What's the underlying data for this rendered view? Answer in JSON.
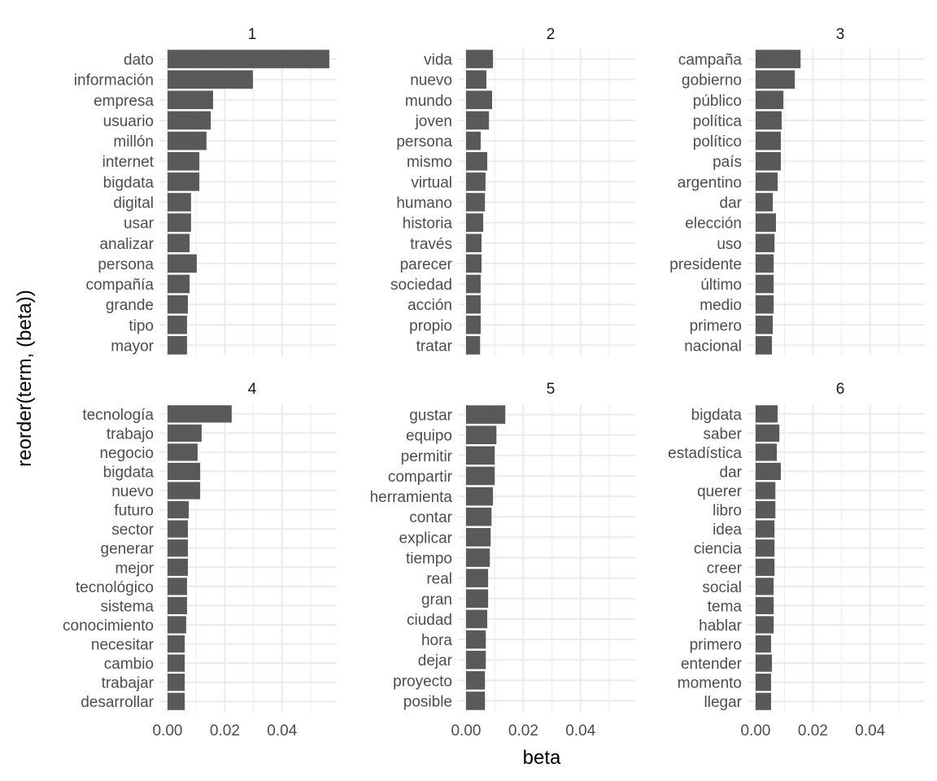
{
  "chart_data": {
    "type": "bar",
    "orientation": "horizontal",
    "facet": "wrap",
    "facet_layout": {
      "rows": 2,
      "cols": 3
    },
    "xlabel": "beta",
    "ylabel": "reorder(term, (beta))",
    "xlim": [
      0,
      0.0565
    ],
    "x_ticks": [
      0.0,
      0.02,
      0.04
    ],
    "x_tick_labels": [
      "0.00",
      "0.02",
      "0.04"
    ],
    "x_minor_ticks": [
      0.01,
      0.03,
      0.05
    ],
    "grid": true,
    "bar_color": "#595959",
    "grid_color": "#ebebeb",
    "panels": [
      {
        "label": "1",
        "terms": [
          "dato",
          "información",
          "empresa",
          "usuario",
          "millón",
          "internet",
          "bigdata",
          "digital",
          "usar",
          "analizar",
          "persona",
          "compañía",
          "grande",
          "tipo",
          "mayor"
        ],
        "values": [
          0.0565,
          0.0298,
          0.0159,
          0.0151,
          0.0136,
          0.0111,
          0.0111,
          0.0082,
          0.0082,
          0.0077,
          0.0102,
          0.0077,
          0.0071,
          0.0068,
          0.0068
        ]
      },
      {
        "label": "2",
        "terms": [
          "vida",
          "nuevo",
          "mundo",
          "joven",
          "persona",
          "mismo",
          "virtual",
          "humano",
          "historia",
          "través",
          "parecer",
          "sociedad",
          "acción",
          "propio",
          "tratar"
        ],
        "values": [
          0.0094,
          0.0071,
          0.0091,
          0.008,
          0.0051,
          0.0074,
          0.0068,
          0.0066,
          0.006,
          0.0054,
          0.0054,
          0.0051,
          0.0051,
          0.0051,
          0.0049
        ]
      },
      {
        "label": "3",
        "terms": [
          "campaña",
          "gobierno",
          "público",
          "política",
          "político",
          "país",
          "argentino",
          "dar",
          "elección",
          "uso",
          "presidente",
          "último",
          "medio",
          "primero",
          "nacional"
        ],
        "values": [
          0.0157,
          0.0137,
          0.0097,
          0.0091,
          0.0088,
          0.0088,
          0.0077,
          0.006,
          0.0071,
          0.0066,
          0.0063,
          0.0063,
          0.0063,
          0.006,
          0.0057
        ]
      },
      {
        "label": "4",
        "terms": [
          "tecnología",
          "trabajo",
          "negocio",
          "bigdata",
          "nuevo",
          "futuro",
          "sector",
          "generar",
          "mejor",
          "tecnológico",
          "sistema",
          "conocimiento",
          "necesitar",
          "cambio",
          "trabajar",
          "desarrollar"
        ],
        "values": [
          0.0224,
          0.0119,
          0.0105,
          0.0114,
          0.0114,
          0.0074,
          0.0071,
          0.0071,
          0.0071,
          0.0068,
          0.0068,
          0.0065,
          0.006,
          0.006,
          0.006,
          0.006
        ]
      },
      {
        "label": "5",
        "terms": [
          "gustar",
          "equipo",
          "permitir",
          "compartir",
          "herramienta",
          "contar",
          "explicar",
          "tiempo",
          "real",
          "gran",
          "ciudad",
          "hora",
          "dejar",
          "proyecto",
          "posible"
        ],
        "values": [
          0.0137,
          0.0106,
          0.01,
          0.01,
          0.0094,
          0.0089,
          0.0086,
          0.0083,
          0.0077,
          0.0077,
          0.0074,
          0.0069,
          0.0069,
          0.0066,
          0.0066
        ]
      },
      {
        "label": "6",
        "terms": [
          "bigdata",
          "saber",
          "estadística",
          "dar",
          "querer",
          "libro",
          "idea",
          "ciencia",
          "creer",
          "social",
          "tema",
          "hablar",
          "primero",
          "entender",
          "momento",
          "llegar"
        ],
        "values": [
          0.0077,
          0.0083,
          0.0074,
          0.0088,
          0.0069,
          0.0069,
          0.0066,
          0.0066,
          0.0066,
          0.0063,
          0.0063,
          0.0063,
          0.0054,
          0.0057,
          0.0054,
          0.0054
        ]
      }
    ]
  }
}
